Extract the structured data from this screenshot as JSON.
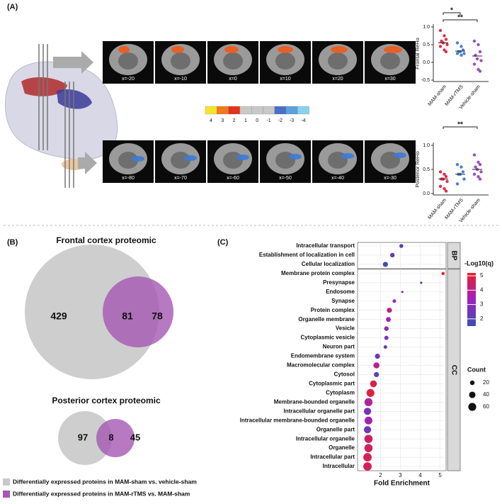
{
  "panel_labels": [
    "(A)",
    "(B)",
    "(C)"
  ],
  "slices": {
    "top": [
      "x=-20",
      "x=-10",
      "x=0",
      "x=10",
      "x=20",
      "x=30"
    ],
    "bottom": [
      "x=-80",
      "x=-70",
      "x=-60",
      "x=-50",
      "x=-40",
      "x=-30"
    ]
  },
  "colorbar": {
    "ticks": [
      4,
      3,
      2,
      1,
      0,
      -1,
      -2,
      -3,
      -4
    ]
  },
  "legend": [
    {
      "label": "Differentially expressed proteins in MAM-sham vs. vehicle-sham",
      "color": "#c9c9c9"
    },
    {
      "label": "Differentially expressed proteins in MAM-rTMS vs. MAM-sham",
      "color": "#a558b3"
    }
  ],
  "chart_data": [
    {
      "type": "strip",
      "ylabel": "Frontal ReHo",
      "categories": [
        "MAM-sham",
        "MAM-rTMS",
        "Vehicle-sham"
      ],
      "colors": [
        "#e0304a",
        "#4a7fd0",
        "#9b4fc0"
      ],
      "values": [
        [
          0.9,
          0.75,
          0.65,
          0.6,
          0.55,
          0.5,
          0.45,
          0.35,
          0.3
        ],
        [
          0.55,
          0.45,
          0.35,
          0.3,
          0.3,
          0.25,
          0.25,
          0.2
        ],
        [
          0.6,
          0.5,
          0.3,
          0.2,
          0.1,
          0.05,
          -0.05,
          -0.2,
          -0.25
        ]
      ],
      "means": [
        0.55,
        0.32,
        0.18
      ],
      "ylim": [
        -0.5,
        1.0
      ],
      "yticks": [
        -0.5,
        {
          "value": 0,
          "label": "0.0"
        },
        0.5,
        {
          "value": 1,
          "label": "1.0"
        }
      ],
      "significance": [
        {
          "label": "*",
          "groups": [
            0,
            1
          ]
        },
        {
          "label": "**",
          "groups": [
            0,
            2
          ]
        }
      ]
    },
    {
      "type": "strip",
      "ylabel": "Posterior ReHo",
      "categories": [
        "MAM-sham",
        "MAM-rTMS",
        "Vehicle-sham"
      ],
      "colors": [
        "#e0304a",
        "#4a7fd0",
        "#9b4fc0"
      ],
      "values": [
        [
          0.45,
          0.4,
          0.35,
          0.3,
          0.3,
          0.25,
          0.15,
          0.1,
          0.05
        ],
        [
          0.6,
          0.55,
          0.45,
          0.4,
          0.4,
          0.3,
          0.2
        ],
        [
          0.8,
          0.65,
          0.6,
          0.55,
          0.5,
          0.45,
          0.4,
          0.35,
          0.3
        ]
      ],
      "means": [
        0.3,
        0.4,
        0.5
      ],
      "ylim": [
        0,
        1
      ],
      "yticks": [
        {
          "value": 0,
          "label": "0.0"
        },
        0.5,
        {
          "value": 1,
          "label": "1.0"
        }
      ],
      "significance": [
        {
          "label": "**",
          "groups": [
            0,
            2
          ]
        }
      ]
    },
    {
      "type": "venn",
      "title": "Frontal cortex proteomic",
      "values": [
        429,
        81,
        78
      ]
    },
    {
      "type": "venn",
      "title": "Posterior cortex proteomic",
      "values": [
        97,
        8,
        45
      ]
    },
    {
      "type": "bubble",
      "xlabel": "Fold Enrichment",
      "xlim": [
        0.85,
        5.3
      ],
      "xticks": [
        2,
        3,
        4,
        5
      ],
      "grid": true,
      "color_title": "-Log10(q)",
      "color_lim": [
        1.5,
        5.2
      ],
      "color_ticks": [
        2,
        3,
        4,
        5
      ],
      "colorscale": [
        "#3a4fb0",
        "#a020c0",
        "#e8202a"
      ],
      "size_title": "Count",
      "size_ticks": [
        20,
        40,
        60
      ],
      "facets": [
        {
          "label": "BP",
          "categories": [
            "Intracellular transport",
            "Establishment of localization in cell",
            "Cellular localization"
          ],
          "x": [
            3.05,
            2.6,
            2.25
          ],
          "count": [
            15,
            20,
            25
          ],
          "neglog10q": [
            2.0,
            2.2,
            1.8
          ]
        },
        {
          "label": "CC",
          "categories": [
            "Membrane protein complex",
            "Presynapse",
            "Endosome",
            "Synapse",
            "Protein complex",
            "Organelle membrane",
            "Vesicle",
            "Cytoplasmic vesicle",
            "Neuron part",
            "Endomembrane system",
            "Macromolecular complex",
            "Cytosol",
            "Cytoplasmic part",
            "Cytoplasm",
            "Membrane-bounded organelle",
            "Intracellular organelle part",
            "Intracellular membrane-bounded organelle",
            "Organelle part",
            "Intracellular organelle",
            "Organelle",
            "Intracellular part",
            "Intracellular"
          ],
          "x": [
            5.15,
            4.05,
            3.1,
            2.7,
            2.45,
            2.4,
            2.3,
            2.3,
            2.25,
            1.85,
            1.8,
            1.8,
            1.65,
            1.5,
            1.4,
            1.35,
            1.4,
            1.35,
            1.4,
            1.4,
            1.35,
            1.35
          ],
          "count": [
            10,
            5,
            5,
            12,
            25,
            22,
            20,
            17,
            12,
            25,
            35,
            25,
            45,
            60,
            62,
            50,
            58,
            50,
            65,
            65,
            67,
            68
          ],
          "neglog10q": [
            5.0,
            2.5,
            2.8,
            3.0,
            4.2,
            3.3,
            3.0,
            2.8,
            2.2,
            2.5,
            4.0,
            2.0,
            4.8,
            4.9,
            3.8,
            2.7,
            3.5,
            2.5,
            4.5,
            4.6,
            4.7,
            4.7
          ]
        }
      ]
    }
  ]
}
